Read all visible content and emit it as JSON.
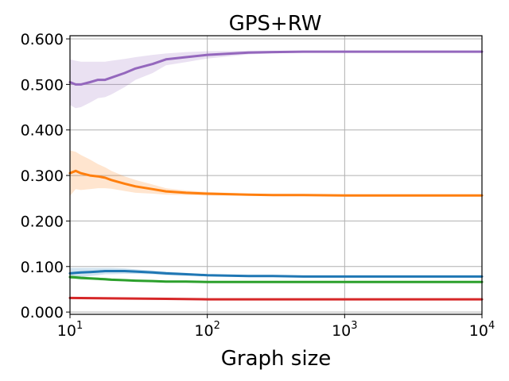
{
  "chart_data": {
    "type": "line",
    "title": "GPS+RW",
    "xlabel": "Graph size",
    "ylabel": "",
    "xscale": "log",
    "xlim": [
      10,
      10000
    ],
    "ylim": [
      -0.005,
      0.607
    ],
    "grid": true,
    "x_ticks": [
      {
        "base": "10",
        "exp": "1",
        "value": 10
      },
      {
        "base": "10",
        "exp": "2",
        "value": 100
      },
      {
        "base": "10",
        "exp": "3",
        "value": 1000
      },
      {
        "base": "10",
        "exp": "4",
        "value": 10000
      }
    ],
    "y_ticks": [
      {
        "label": "0.000",
        "value": 0.0
      },
      {
        "label": "0.100",
        "value": 0.1
      },
      {
        "label": "0.200",
        "value": 0.2
      },
      {
        "label": "0.300",
        "value": 0.3
      },
      {
        "label": "0.400",
        "value": 0.4
      },
      {
        "label": "0.500",
        "value": 0.5
      },
      {
        "label": "0.600",
        "value": 0.6
      }
    ],
    "series": [
      {
        "color": "#9467bd",
        "x": [
          10,
          11,
          12,
          14,
          16,
          18,
          20,
          25,
          30,
          40,
          50,
          70,
          100,
          200,
          300,
          500,
          1000,
          2000,
          5000,
          10000
        ],
        "y": [
          0.505,
          0.5,
          0.5,
          0.505,
          0.51,
          0.51,
          0.515,
          0.525,
          0.535,
          0.545,
          0.555,
          0.56,
          0.565,
          0.57,
          0.571,
          0.572,
          0.572,
          0.572,
          0.572,
          0.572
        ],
        "upper": [
          0.555,
          0.552,
          0.55,
          0.55,
          0.55,
          0.55,
          0.552,
          0.556,
          0.56,
          0.565,
          0.568,
          0.571,
          0.573,
          0.574,
          0.574,
          0.574,
          0.574,
          0.574,
          0.574,
          0.574
        ],
        "lower": [
          0.455,
          0.448,
          0.45,
          0.46,
          0.47,
          0.472,
          0.478,
          0.494,
          0.51,
          0.525,
          0.542,
          0.549,
          0.557,
          0.566,
          0.568,
          0.57,
          0.57,
          0.57,
          0.57,
          0.57
        ]
      },
      {
        "color": "#ff7f0e",
        "x": [
          10,
          11,
          12,
          14,
          16,
          18,
          20,
          25,
          30,
          40,
          50,
          70,
          100,
          200,
          300,
          500,
          1000,
          2000,
          5000,
          10000
        ],
        "y": [
          0.305,
          0.31,
          0.305,
          0.3,
          0.298,
          0.295,
          0.29,
          0.282,
          0.276,
          0.27,
          0.265,
          0.262,
          0.26,
          0.258,
          0.257,
          0.257,
          0.256,
          0.256,
          0.256,
          0.256
        ],
        "upper": [
          0.355,
          0.352,
          0.345,
          0.335,
          0.325,
          0.318,
          0.31,
          0.298,
          0.29,
          0.28,
          0.272,
          0.267,
          0.264,
          0.26,
          0.259,
          0.258,
          0.257,
          0.257,
          0.257,
          0.257
        ],
        "lower": [
          0.255,
          0.27,
          0.268,
          0.27,
          0.272,
          0.272,
          0.271,
          0.266,
          0.262,
          0.26,
          0.258,
          0.257,
          0.256,
          0.256,
          0.255,
          0.255,
          0.255,
          0.255,
          0.255,
          0.255
        ]
      },
      {
        "color": "#1f77b4",
        "x": [
          10,
          11,
          12,
          14,
          16,
          18,
          20,
          25,
          30,
          40,
          50,
          70,
          100,
          200,
          300,
          500,
          1000,
          2000,
          5000,
          10000
        ],
        "y": [
          0.085,
          0.086,
          0.087,
          0.088,
          0.089,
          0.09,
          0.09,
          0.09,
          0.089,
          0.087,
          0.085,
          0.083,
          0.081,
          0.079,
          0.079,
          0.078,
          0.078,
          0.078,
          0.078,
          0.078
        ],
        "upper": [
          0.097,
          0.097,
          0.097,
          0.097,
          0.097,
          0.097,
          0.097,
          0.096,
          0.094,
          0.091,
          0.089,
          0.086,
          0.083,
          0.081,
          0.08,
          0.079,
          0.079,
          0.079,
          0.079,
          0.079
        ],
        "lower": [
          0.073,
          0.075,
          0.077,
          0.079,
          0.081,
          0.083,
          0.083,
          0.084,
          0.084,
          0.083,
          0.081,
          0.08,
          0.079,
          0.077,
          0.077,
          0.077,
          0.077,
          0.077,
          0.077,
          0.077
        ]
      },
      {
        "color": "#2ca02c",
        "x": [
          10,
          11,
          12,
          14,
          16,
          18,
          20,
          25,
          30,
          40,
          50,
          70,
          100,
          200,
          300,
          500,
          1000,
          2000,
          5000,
          10000
        ],
        "y": [
          0.077,
          0.076,
          0.075,
          0.074,
          0.073,
          0.072,
          0.071,
          0.07,
          0.069,
          0.068,
          0.067,
          0.067,
          0.066,
          0.066,
          0.066,
          0.066,
          0.066,
          0.066,
          0.066,
          0.066
        ],
        "upper": [
          0.082,
          0.08,
          0.079,
          0.077,
          0.076,
          0.075,
          0.074,
          0.072,
          0.071,
          0.07,
          0.069,
          0.068,
          0.067,
          0.067,
          0.067,
          0.067,
          0.067,
          0.067,
          0.067,
          0.067
        ],
        "lower": [
          0.072,
          0.072,
          0.071,
          0.071,
          0.07,
          0.069,
          0.068,
          0.068,
          0.067,
          0.066,
          0.065,
          0.066,
          0.065,
          0.065,
          0.065,
          0.065,
          0.065,
          0.065,
          0.065,
          0.065
        ]
      },
      {
        "color": "#d62728",
        "x": [
          10,
          20,
          50,
          100,
          300,
          1000,
          3000,
          10000
        ],
        "y": [
          0.031,
          0.03,
          0.029,
          0.028,
          0.028,
          0.028,
          0.028,
          0.028
        ],
        "upper": [
          0.033,
          0.031,
          0.03,
          0.029,
          0.029,
          0.029,
          0.029,
          0.029
        ],
        "lower": [
          0.029,
          0.029,
          0.028,
          0.027,
          0.027,
          0.027,
          0.027,
          0.027
        ]
      }
    ]
  }
}
